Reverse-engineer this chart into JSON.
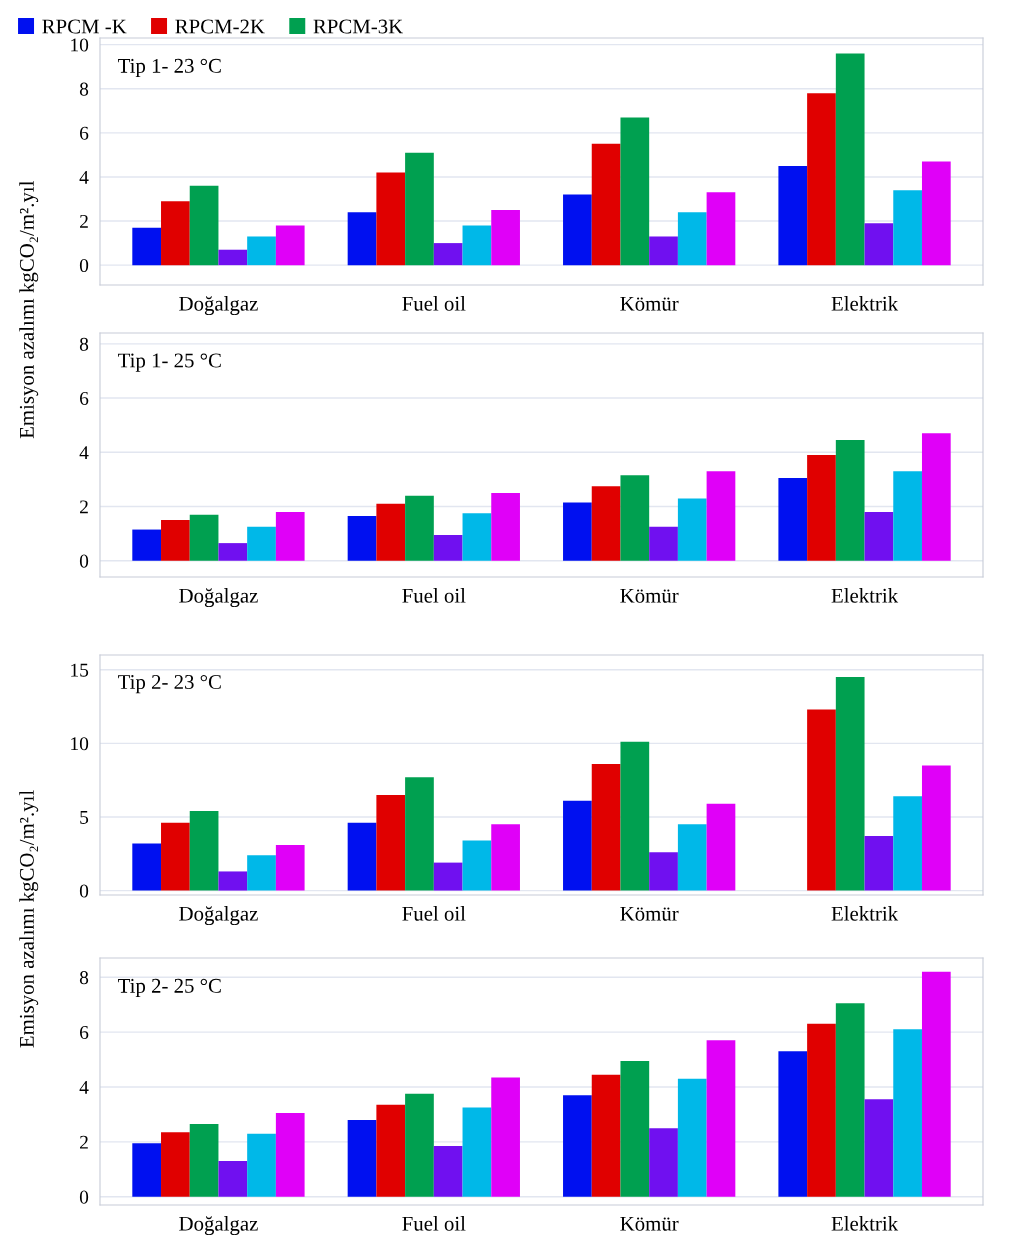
{
  "chart_data": [
    {
      "type": "bar",
      "title": "Tip 1- 23 °C",
      "ylabel": "Emisyon azalımı kgCO₂/m².yıl",
      "categories": [
        "Doğalgaz",
        "Fuel oil",
        "Kömür",
        "Elektrik"
      ],
      "ylim": [
        -0.9,
        10.3
      ],
      "yticks": [
        0,
        2,
        4,
        6,
        8,
        10
      ],
      "grid": "y",
      "legend": "top",
      "series": [
        {
          "name": "RPCM -K",
          "color": "#0010f0",
          "values": [
            1.7,
            2.4,
            3.2,
            4.5
          ]
        },
        {
          "name": "RPCM-2K",
          "color": "#e00000",
          "values": [
            2.9,
            4.2,
            5.5,
            7.8
          ]
        },
        {
          "name": "RPCM-3K",
          "color": "#00a050",
          "values": [
            3.6,
            5.1,
            6.7,
            9.6
          ]
        },
        {
          "color": "#7010f0",
          "values": [
            0.7,
            1.0,
            1.3,
            1.9
          ]
        },
        {
          "color": "#00b8e8",
          "values": [
            1.3,
            1.8,
            2.4,
            3.4
          ]
        },
        {
          "color": "#e000f8",
          "values": [
            1.8,
            2.5,
            3.3,
            4.7
          ]
        }
      ]
    },
    {
      "type": "bar",
      "title": "Tip 1- 25 °C",
      "categories": [
        "Doğalgaz",
        "Fuel oil",
        "Kömür",
        "Elektrik"
      ],
      "ylim": [
        -0.6,
        8.4
      ],
      "yticks": [
        0,
        2,
        4,
        6,
        8
      ],
      "grid": "y",
      "series": [
        {
          "color": "#0010f0",
          "values": [
            1.15,
            1.65,
            2.15,
            3.05
          ]
        },
        {
          "color": "#e00000",
          "values": [
            1.5,
            2.1,
            2.75,
            3.9
          ]
        },
        {
          "color": "#00a050",
          "values": [
            1.7,
            2.4,
            3.15,
            4.45
          ]
        },
        {
          "color": "#7010f0",
          "values": [
            0.65,
            0.95,
            1.25,
            1.8
          ]
        },
        {
          "color": "#00b8e8",
          "values": [
            1.25,
            1.75,
            2.3,
            3.3
          ]
        },
        {
          "color": "#e000f8",
          "values": [
            1.8,
            2.5,
            3.3,
            4.7
          ]
        }
      ]
    },
    {
      "type": "bar",
      "title": "Tip 2- 23 °C",
      "ylabel": "Emisyon azalımı kgCO₂/m².yıl",
      "categories": [
        "Doğalgaz",
        "Fuel oil",
        "Kömür",
        "Elektrik"
      ],
      "ylim": [
        -0.3,
        16
      ],
      "yticks": [
        0,
        5,
        10,
        15
      ],
      "grid": "y",
      "series": [
        {
          "color": "#0010f0",
          "values": [
            3.2,
            4.6,
            6.1,
            null
          ]
        },
        {
          "color": "#e00000",
          "values": [
            4.6,
            6.5,
            8.6,
            12.3
          ]
        },
        {
          "color": "#00a050",
          "values": [
            5.4,
            7.7,
            10.1,
            14.5
          ]
        },
        {
          "color": "#7010f0",
          "values": [
            1.3,
            1.9,
            2.6,
            3.7
          ]
        },
        {
          "color": "#00b8e8",
          "values": [
            2.4,
            3.4,
            4.5,
            6.4
          ]
        },
        {
          "color": "#e000f8",
          "values": [
            3.1,
            4.5,
            5.9,
            8.5
          ]
        }
      ]
    },
    {
      "type": "bar",
      "title": "Tip 2- 25 °C",
      "categories": [
        "Doğalgaz",
        "Fuel oil",
        "Kömür",
        "Elektrik"
      ],
      "ylim": [
        -0.3,
        8.7
      ],
      "yticks": [
        0,
        2,
        4,
        6,
        8
      ],
      "grid": "y",
      "series": [
        {
          "color": "#0010f0",
          "values": [
            1.95,
            2.8,
            3.7,
            5.3
          ]
        },
        {
          "color": "#e00000",
          "values": [
            2.35,
            3.35,
            4.45,
            6.3
          ]
        },
        {
          "color": "#00a050",
          "values": [
            2.65,
            3.75,
            4.95,
            7.05
          ]
        },
        {
          "color": "#7010f0",
          "values": [
            1.3,
            1.85,
            2.5,
            3.55
          ]
        },
        {
          "color": "#00b8e8",
          "values": [
            2.3,
            3.25,
            4.3,
            6.1
          ]
        },
        {
          "color": "#e000f8",
          "values": [
            3.05,
            4.35,
            5.7,
            8.2
          ]
        }
      ]
    }
  ]
}
